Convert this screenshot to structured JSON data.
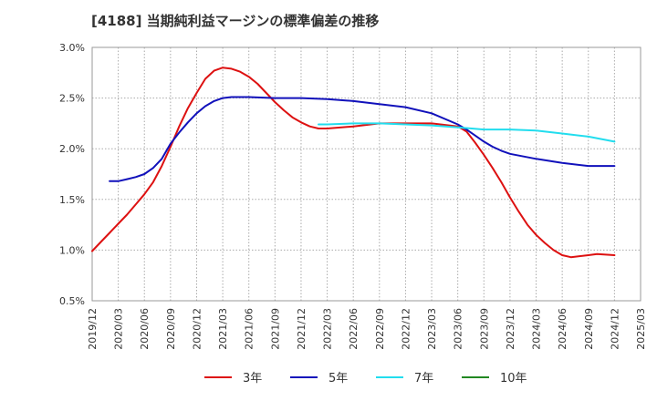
{
  "chart_data": {
    "type": "line",
    "title": "[4188]  当期純利益マージンの標準偏差の推移",
    "xlabel": "",
    "ylabel": "",
    "x_ticks": [
      "2019/12",
      "2020/03",
      "2020/06",
      "2020/09",
      "2020/12",
      "2021/03",
      "2021/06",
      "2021/09",
      "2021/12",
      "2022/03",
      "2022/06",
      "2022/09",
      "2022/12",
      "2023/03",
      "2023/06",
      "2023/09",
      "2023/12",
      "2024/03",
      "2024/06",
      "2024/09",
      "2024/12",
      "2025/03"
    ],
    "ylim": [
      0.5,
      3.0
    ],
    "y_ticks": [
      "0.5%",
      "1.0%",
      "1.5%",
      "2.0%",
      "2.5%",
      "3.0%"
    ],
    "y_tick_values": [
      0.5,
      1.0,
      1.5,
      2.0,
      2.5,
      3.0
    ],
    "grid": true,
    "legend_position": "bottom",
    "series": [
      {
        "name": "3年",
        "color": "#dd1111",
        "points": [
          [
            "2019/12",
            0.99
          ],
          [
            "2020/01",
            1.08
          ],
          [
            "2020/02",
            1.17
          ],
          [
            "2020/03",
            1.26
          ],
          [
            "2020/04",
            1.35
          ],
          [
            "2020/05",
            1.45
          ],
          [
            "2020/06",
            1.55
          ],
          [
            "2020/07",
            1.67
          ],
          [
            "2020/08",
            1.83
          ],
          [
            "2020/09",
            2.02
          ],
          [
            "2020/10",
            2.22
          ],
          [
            "2020/11",
            2.4
          ],
          [
            "2020/12",
            2.55
          ],
          [
            "2021/01",
            2.69
          ],
          [
            "2021/02",
            2.77
          ],
          [
            "2021/03",
            2.8
          ],
          [
            "2021/04",
            2.79
          ],
          [
            "2021/05",
            2.76
          ],
          [
            "2021/06",
            2.71
          ],
          [
            "2021/07",
            2.64
          ],
          [
            "2021/08",
            2.55
          ],
          [
            "2021/09",
            2.46
          ],
          [
            "2021/10",
            2.38
          ],
          [
            "2021/11",
            2.31
          ],
          [
            "2021/12",
            2.26
          ],
          [
            "2022/01",
            2.22
          ],
          [
            "2022/02",
            2.2
          ],
          [
            "2022/03",
            2.2
          ],
          [
            "2022/06",
            2.22
          ],
          [
            "2022/09",
            2.25
          ],
          [
            "2022/12",
            2.25
          ],
          [
            "2023/03",
            2.25
          ],
          [
            "2023/06",
            2.22
          ],
          [
            "2023/07",
            2.17
          ],
          [
            "2023/08",
            2.06
          ],
          [
            "2023/09",
            1.94
          ],
          [
            "2023/10",
            1.81
          ],
          [
            "2023/11",
            1.67
          ],
          [
            "2023/12",
            1.52
          ],
          [
            "2024/01",
            1.38
          ],
          [
            "2024/02",
            1.25
          ],
          [
            "2024/03",
            1.15
          ],
          [
            "2024/04",
            1.07
          ],
          [
            "2024/05",
            1.0
          ],
          [
            "2024/06",
            0.95
          ],
          [
            "2024/07",
            0.93
          ],
          [
            "2024/09",
            0.95
          ],
          [
            "2024/10",
            0.96
          ],
          [
            "2024/12",
            0.95
          ]
        ]
      },
      {
        "name": "5年",
        "color": "#1111bb",
        "points": [
          [
            "2020/02",
            1.68
          ],
          [
            "2020/03",
            1.68
          ],
          [
            "2020/04",
            1.7
          ],
          [
            "2020/05",
            1.72
          ],
          [
            "2020/06",
            1.75
          ],
          [
            "2020/07",
            1.81
          ],
          [
            "2020/08",
            1.9
          ],
          [
            "2020/09",
            2.05
          ],
          [
            "2020/10",
            2.16
          ],
          [
            "2020/11",
            2.26
          ],
          [
            "2020/12",
            2.35
          ],
          [
            "2021/01",
            2.42
          ],
          [
            "2021/02",
            2.47
          ],
          [
            "2021/03",
            2.5
          ],
          [
            "2021/04",
            2.51
          ],
          [
            "2021/06",
            2.51
          ],
          [
            "2021/09",
            2.5
          ],
          [
            "2021/12",
            2.5
          ],
          [
            "2022/03",
            2.49
          ],
          [
            "2022/06",
            2.47
          ],
          [
            "2022/09",
            2.44
          ],
          [
            "2022/12",
            2.41
          ],
          [
            "2023/03",
            2.35
          ],
          [
            "2023/06",
            2.24
          ],
          [
            "2023/07",
            2.19
          ],
          [
            "2023/08",
            2.13
          ],
          [
            "2023/09",
            2.07
          ],
          [
            "2023/10",
            2.02
          ],
          [
            "2023/11",
            1.98
          ],
          [
            "2023/12",
            1.95
          ],
          [
            "2024/03",
            1.9
          ],
          [
            "2024/06",
            1.86
          ],
          [
            "2024/09",
            1.83
          ],
          [
            "2024/12",
            1.83
          ]
        ]
      },
      {
        "name": "7年",
        "color": "#22ddee",
        "points": [
          [
            "2022/02",
            2.24
          ],
          [
            "2022/03",
            2.24
          ],
          [
            "2022/06",
            2.25
          ],
          [
            "2022/09",
            2.25
          ],
          [
            "2022/12",
            2.24
          ],
          [
            "2023/03",
            2.23
          ],
          [
            "2023/06",
            2.21
          ],
          [
            "2023/09",
            2.19
          ],
          [
            "2023/12",
            2.19
          ],
          [
            "2024/03",
            2.18
          ],
          [
            "2024/06",
            2.15
          ],
          [
            "2024/09",
            2.12
          ],
          [
            "2024/12",
            2.07
          ]
        ]
      },
      {
        "name": "10年",
        "color": "#228822",
        "points": []
      }
    ]
  }
}
